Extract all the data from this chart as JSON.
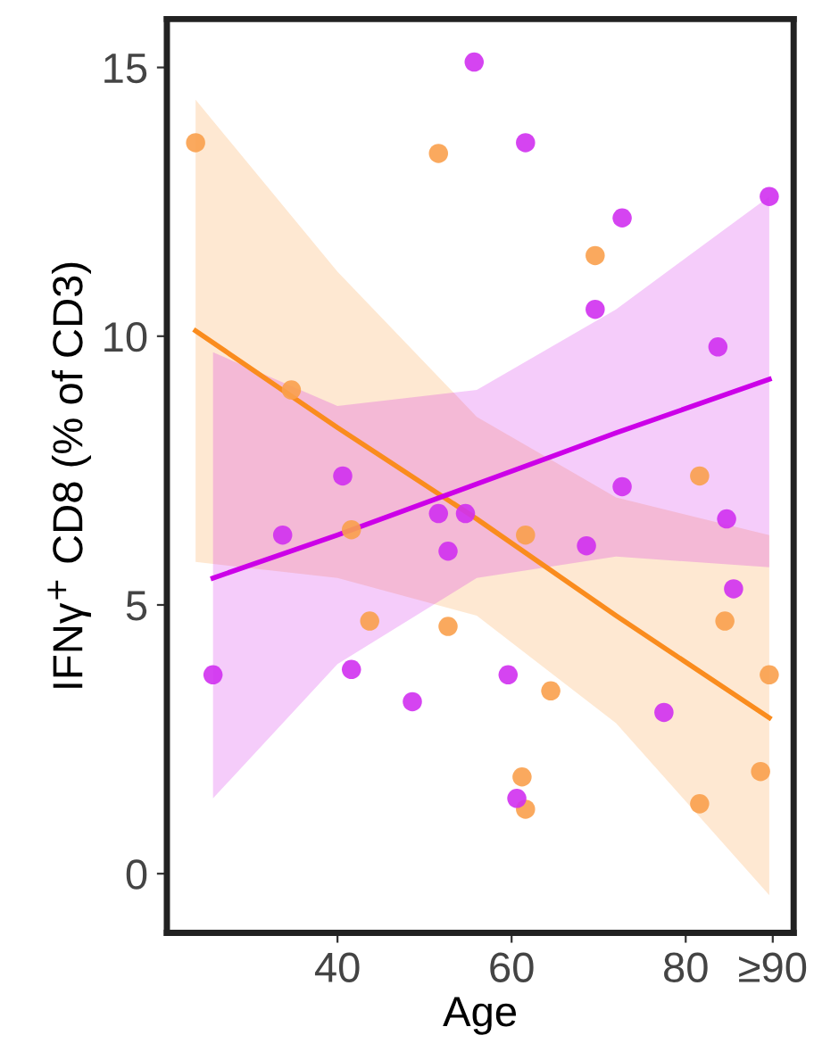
{
  "chart_data": {
    "type": "scatter",
    "xlabel": "Age",
    "ylabel": "IFNγ$^{+}$ CD8 (% of CD3)",
    "xlim": [
      20.4,
      92.4
    ],
    "ylim": [
      -1.1,
      15.9
    ],
    "xticks": [
      40,
      60,
      80,
      {
        "value": 90,
        "label": "≥90"
      }
    ],
    "yticks": [
      0,
      5,
      10,
      15
    ],
    "grid": false,
    "legend": false,
    "series": [
      {
        "marker": "circle",
        "color": "#f9a04c",
        "x": [
          23.7,
          51.6,
          34.7,
          69.6,
          41.6,
          43.7,
          52.7,
          61.6,
          64.5,
          61.2,
          61.6,
          81.6,
          84.5,
          89.6,
          88.6,
          81.6
        ],
        "values": [
          13.6,
          13.4,
          9.0,
          11.5,
          6.4,
          4.7,
          4.6,
          6.3,
          3.4,
          1.8,
          1.2,
          7.4,
          4.7,
          3.7,
          1.9,
          1.3
        ]
      },
      {
        "marker": "circle",
        "color": "#d030f0",
        "x": [
          55.7,
          61.6,
          72.7,
          89.6,
          69.6,
          83.7,
          40.6,
          33.7,
          51.6,
          54.7,
          52.7,
          25.7,
          41.6,
          48.6,
          72.7,
          68.6,
          84.7,
          85.5,
          59.6,
          60.6,
          77.5
        ],
        "values": [
          15.1,
          13.6,
          12.2,
          12.6,
          10.5,
          9.8,
          7.4,
          6.3,
          6.7,
          6.7,
          6.0,
          3.7,
          3.8,
          3.2,
          7.2,
          6.1,
          6.6,
          5.3,
          3.7,
          1.4,
          3.0
        ]
      },
      {
        "type": "line",
        "color": "#fa8c1e",
        "line_style": "solid",
        "x": [
          23.7,
          40,
          56,
          72,
          89.6
        ],
        "values": [
          10.1,
          8.3,
          6.6,
          4.8,
          2.9
        ],
        "upper": [
          14.4,
          11.2,
          8.5,
          7.0,
          6.3
        ],
        "lower": [
          5.8,
          5.5,
          4.8,
          2.8,
          -0.4
        ]
      },
      {
        "type": "line",
        "color": "#cc00e8",
        "line_style": "solid",
        "x": [
          25.7,
          40,
          56,
          72,
          89.6
        ],
        "values": [
          5.5,
          6.3,
          7.25,
          8.2,
          9.2
        ],
        "upper": [
          9.7,
          8.7,
          9.0,
          10.5,
          12.6
        ],
        "lower": [
          1.4,
          3.9,
          5.5,
          5.9,
          5.7
        ]
      }
    ]
  }
}
